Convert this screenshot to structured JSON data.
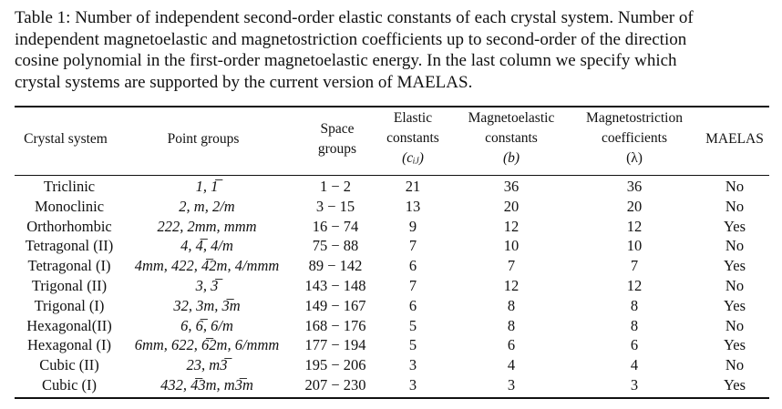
{
  "caption": {
    "lines": [
      "Table 1: Number of independent second-order elastic constants of each crystal system. Number of",
      "independent magnetoelastic and magnetostriction coefficients up to second-order of the direction",
      "cosine polynomial in the first-order magnetoelastic energy.  In the last column we specify which",
      "crystal systems are supported by the current version of MAELAS."
    ]
  },
  "table": {
    "headers": {
      "crystal_system": [
        "Crystal system"
      ],
      "point_groups": [
        "Point groups"
      ],
      "space_groups": [
        "Space",
        "groups"
      ],
      "elastic": [
        "Elastic",
        "constants",
        "(cᵢⱼ)"
      ],
      "magnetoelastic": [
        "Magnetoelastic",
        "constants",
        "(b)"
      ],
      "magnetostriction": [
        "Magnetostriction",
        "coefficients",
        "(λ)"
      ],
      "maelas": [
        "MAELAS"
      ]
    },
    "rows": [
      {
        "system": "Triclinic",
        "point_groups": "1, 1̅",
        "space_groups": "1 − 2",
        "elastic": "21",
        "magnetoelastic": "36",
        "magnetostriction": "36",
        "maelas": "No"
      },
      {
        "system": "Monoclinic",
        "point_groups": "2, m, 2/m",
        "space_groups": "3 − 15",
        "elastic": "13",
        "magnetoelastic": "20",
        "magnetostriction": "20",
        "maelas": "No"
      },
      {
        "system": "Orthorhombic",
        "point_groups": "222, 2mm, mmm",
        "space_groups": "16 − 74",
        "elastic": "9",
        "magnetoelastic": "12",
        "magnetostriction": "12",
        "maelas": "Yes"
      },
      {
        "system": "Tetragonal (II)",
        "point_groups": "4, 4̅, 4/m",
        "space_groups": "75 − 88",
        "elastic": "7",
        "magnetoelastic": "10",
        "magnetostriction": "10",
        "maelas": "No"
      },
      {
        "system": "Tetragonal (I)",
        "point_groups": "4mm, 422, 4̅2m, 4/mmm",
        "space_groups": "89 − 142",
        "elastic": "6",
        "magnetoelastic": "7",
        "magnetostriction": "7",
        "maelas": "Yes"
      },
      {
        "system": "Trigonal (II)",
        "point_groups": "3, 3̅",
        "space_groups": "143 − 148",
        "elastic": "7",
        "magnetoelastic": "12",
        "magnetostriction": "12",
        "maelas": "No"
      },
      {
        "system": "Trigonal (I)",
        "point_groups": "32, 3m, 3̅m",
        "space_groups": "149 − 167",
        "elastic": "6",
        "magnetoelastic": "8",
        "magnetostriction": "8",
        "maelas": "Yes"
      },
      {
        "system": "Hexagonal(II)",
        "point_groups": "6, 6̅, 6/m",
        "space_groups": "168 − 176",
        "elastic": "5",
        "magnetoelastic": "8",
        "magnetostriction": "8",
        "maelas": "No"
      },
      {
        "system": "Hexagonal (I)",
        "point_groups": "6mm, 622, 6̅2m, 6/mmm",
        "space_groups": "177 − 194",
        "elastic": "5",
        "magnetoelastic": "6",
        "magnetostriction": "6",
        "maelas": "Yes"
      },
      {
        "system": "Cubic (II)",
        "point_groups": "23, m3̅",
        "space_groups": "195 − 206",
        "elastic": "3",
        "magnetoelastic": "4",
        "magnetostriction": "4",
        "maelas": "No"
      },
      {
        "system": "Cubic (I)",
        "point_groups": "432, 4̅3m, m3̅m",
        "space_groups": "207 − 230",
        "elastic": "3",
        "magnetoelastic": "3",
        "magnetostriction": "3",
        "maelas": "Yes"
      }
    ]
  }
}
